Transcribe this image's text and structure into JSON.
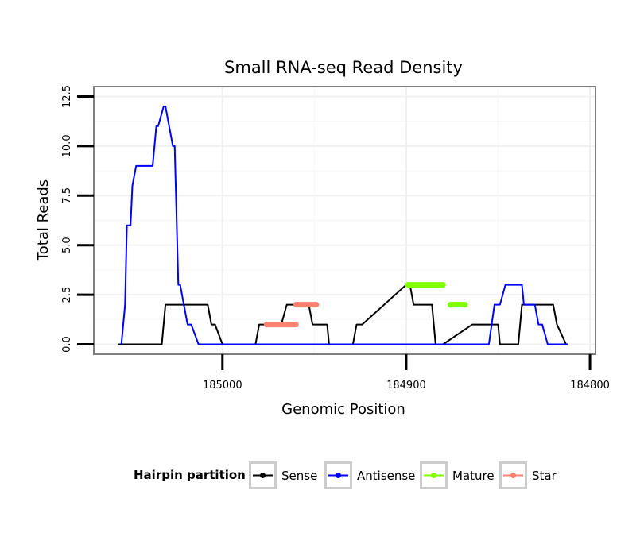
{
  "chart_data": {
    "type": "line",
    "title": "Small RNA-seq Read Density",
    "xlabel": "Genomic Position",
    "ylabel": "Total Reads",
    "xlim": [
      185070,
      184797
    ],
    "x_reversed": true,
    "ylim": [
      -0.5,
      13
    ],
    "x_ticks": [
      185000,
      184900,
      184800
    ],
    "x_tick_labels": [
      "185000",
      "184900",
      "184800"
    ],
    "y_ticks": [
      0,
      2.5,
      5,
      7.5,
      10,
      12.5
    ],
    "y_tick_labels": [
      "0.0",
      "2.5",
      "5.0",
      "7.5",
      "10.0",
      "12.5"
    ],
    "grid": true,
    "legend": {
      "title": "Hairpin partition",
      "position": "bottom",
      "entries": [
        {
          "name": "Sense",
          "color": "#000000"
        },
        {
          "name": "Antisense",
          "color": "#0000ff"
        },
        {
          "name": "Mature",
          "color": "#7fff00"
        },
        {
          "name": "Star",
          "color": "#fa8072"
        }
      ]
    },
    "series": [
      {
        "name": "Sense",
        "color": "#000000",
        "width": 2,
        "x": [
          185057,
          185033,
          185031,
          185026,
          185008,
          185006,
          185004,
          185000,
          184982,
          184980,
          184968,
          184965,
          184953,
          184951,
          184946,
          184943,
          184942,
          184929,
          184927,
          184924,
          184900,
          184898,
          184896,
          184886,
          184884,
          184880,
          184864,
          184862,
          184855,
          184850,
          184849,
          184839,
          184837,
          184832,
          184820,
          184818,
          184813
        ],
        "y": [
          0,
          0,
          2,
          2,
          2,
          1,
          1,
          0,
          0,
          1,
          1,
          2,
          2,
          1,
          1,
          1,
          0,
          0,
          1,
          1,
          3,
          3,
          2,
          2,
          0,
          0,
          1,
          1,
          1,
          1,
          0,
          0,
          2,
          2,
          2,
          1,
          0
        ]
      },
      {
        "name": "Antisense",
        "color": "#0000ff",
        "width": 2,
        "x": [
          185055,
          185053,
          185052,
          185050,
          185049,
          185047,
          185046,
          185038,
          185036,
          185035,
          185032,
          185031,
          185027,
          185026,
          185024,
          185023,
          185019,
          185017,
          185013,
          184855,
          184852,
          184849,
          184846,
          184844,
          184837,
          184836,
          184830,
          184828,
          184826,
          184823,
          184812
        ],
        "y": [
          0,
          2,
          6,
          6,
          8,
          9,
          9,
          9,
          11,
          11,
          12,
          12,
          10,
          10,
          3,
          3,
          1,
          1,
          0,
          0,
          2,
          2,
          3,
          3,
          3,
          2,
          2,
          1,
          1,
          0,
          0
        ]
      },
      {
        "name": "Mature",
        "color": "#7fff00",
        "width": 7,
        "segments": [
          {
            "x": [
              184899,
              184880
            ],
            "y": [
              3,
              3
            ]
          },
          {
            "x": [
              184876,
              184868
            ],
            "y": [
              2,
              2
            ]
          }
        ]
      },
      {
        "name": "Star",
        "color": "#fa8072",
        "width": 7,
        "segments": [
          {
            "x": [
              184976,
              184960
            ],
            "y": [
              1,
              1
            ]
          },
          {
            "x": [
              184960,
              184949
            ],
            "y": [
              2,
              2
            ]
          }
        ]
      }
    ]
  }
}
